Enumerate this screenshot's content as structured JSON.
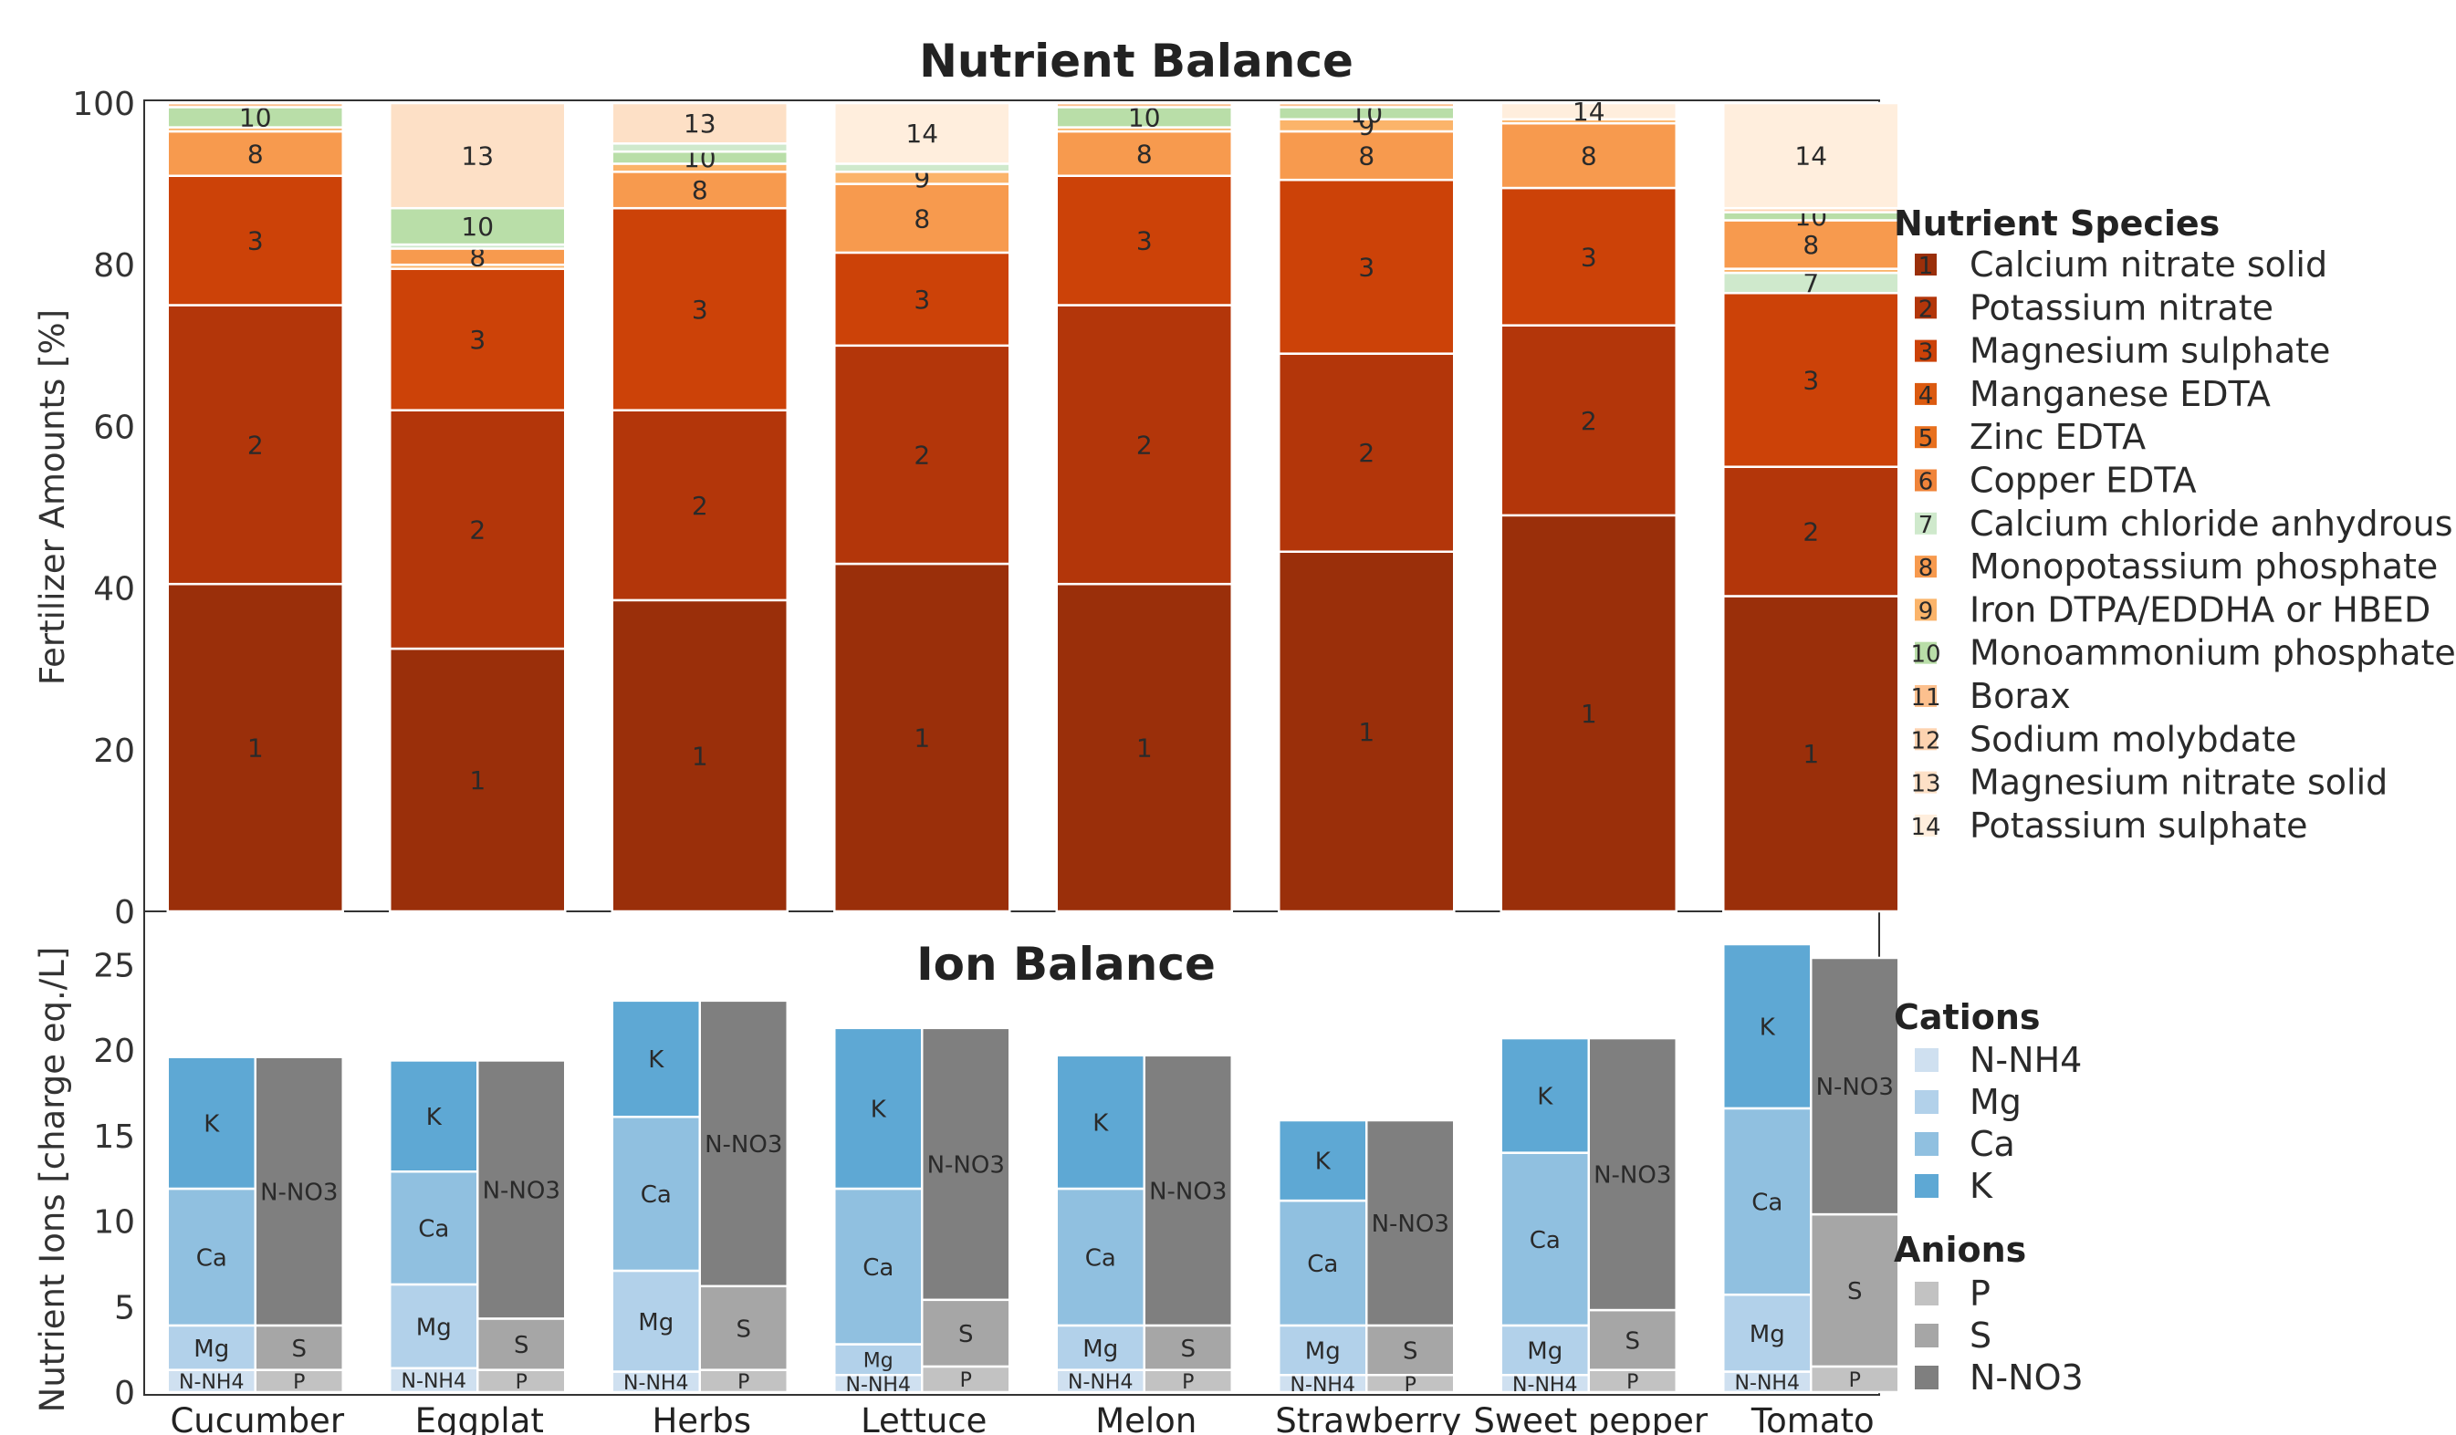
{
  "chart_data": [
    {
      "type": "bar",
      "stacked": true,
      "title": "Nutrient Balance",
      "ylabel": "Fertilizer  Amounts [%]",
      "ylim": [
        0,
        100
      ],
      "yticks": [
        "0",
        "20",
        "40",
        "60",
        "80",
        "100"
      ],
      "categories": [
        "Cucumber",
        "Eggplat",
        "Herbs",
        "Lettuce",
        "Melon",
        "Strawberry",
        "Sweet pepper",
        "Tomato"
      ],
      "legend_title": "Nutrient Species",
      "legend_position": "right",
      "species": [
        {
          "id": "1",
          "name": "Calcium nitrate solid",
          "color": "#9a2f0a"
        },
        {
          "id": "2",
          "name": "Potassium nitrate",
          "color": "#b3360a"
        },
        {
          "id": "3",
          "name": "Magnesium sulphate",
          "color": "#cc4208"
        },
        {
          "id": "4",
          "name": "Manganese EDTA",
          "color": "#db5a10"
        },
        {
          "id": "5",
          "name": "Zinc EDTA",
          "color": "#e8701e"
        },
        {
          "id": "6",
          "name": "Copper EDTA",
          "color": "#f0843a"
        },
        {
          "id": "7",
          "name": "Calcium chloride anhydrous",
          "color": "#cfe9cc"
        },
        {
          "id": "8",
          "name": "Monopotassium phosphate",
          "color": "#f79a4e"
        },
        {
          "id": "9",
          "name": "Iron DTPA/EDDHA or HBED",
          "color": "#fbb46a"
        },
        {
          "id": "10",
          "name": "Monoammonium phosphate",
          "color": "#b9dea8"
        },
        {
          "id": "11",
          "name": "Borax",
          "color": "#fcc08e"
        },
        {
          "id": "12",
          "name": "Sodium molybdate",
          "color": "#fdd3b0"
        },
        {
          "id": "13",
          "name": "Magnesium nitrate solid",
          "color": "#fde0c6"
        },
        {
          "id": "14",
          "name": "Potassium sulphate",
          "color": "#ffeedd"
        }
      ],
      "series": [
        {
          "category": "Cucumber",
          "segments": [
            {
              "id": "1",
              "value": 40.5,
              "label": "1"
            },
            {
              "id": "2",
              "value": 34.5,
              "label": "2"
            },
            {
              "id": "3",
              "value": 16.0,
              "label": "3"
            },
            {
              "id": "8",
              "value": 5.5,
              "label": "8"
            },
            {
              "id": "9",
              "value": 0.5,
              "label": ""
            },
            {
              "id": "10",
              "value": 2.5,
              "label": "10"
            },
            {
              "id": "11",
              "value": 0.5,
              "label": ""
            }
          ]
        },
        {
          "category": "Eggplat",
          "segments": [
            {
              "id": "1",
              "value": 32.5,
              "label": "1"
            },
            {
              "id": "2",
              "value": 29.5,
              "label": "2"
            },
            {
              "id": "3",
              "value": 17.5,
              "label": "3"
            },
            {
              "id": "9",
              "value": 0.5,
              "label": ""
            },
            {
              "id": "8",
              "value": 2.0,
              "label": "8"
            },
            {
              "id": "7",
              "value": 0.5,
              "label": ""
            },
            {
              "id": "10",
              "value": 4.5,
              "label": "10"
            },
            {
              "id": "13",
              "value": 13.0,
              "label": "13"
            }
          ]
        },
        {
          "category": "Herbs",
          "segments": [
            {
              "id": "1",
              "value": 38.5,
              "label": "1"
            },
            {
              "id": "2",
              "value": 23.5,
              "label": "2"
            },
            {
              "id": "3",
              "value": 25.0,
              "label": "3"
            },
            {
              "id": "8",
              "value": 4.5,
              "label": "8"
            },
            {
              "id": "9",
              "value": 1.0,
              "label": ""
            },
            {
              "id": "10",
              "value": 1.5,
              "label": "10"
            },
            {
              "id": "7",
              "value": 1.0,
              "label": ""
            },
            {
              "id": "13",
              "value": 5.0,
              "label": "13"
            }
          ]
        },
        {
          "category": "Lettuce",
          "segments": [
            {
              "id": "1",
              "value": 43.0,
              "label": "1"
            },
            {
              "id": "2",
              "value": 27.0,
              "label": "2"
            },
            {
              "id": "3",
              "value": 11.5,
              "label": "3"
            },
            {
              "id": "8",
              "value": 8.5,
              "label": "8"
            },
            {
              "id": "9",
              "value": 1.5,
              "label": "9"
            },
            {
              "id": "7",
              "value": 1.0,
              "label": ""
            },
            {
              "id": "14",
              "value": 7.5,
              "label": "14"
            }
          ]
        },
        {
          "category": "Melon",
          "segments": [
            {
              "id": "1",
              "value": 40.5,
              "label": "1"
            },
            {
              "id": "2",
              "value": 34.5,
              "label": "2"
            },
            {
              "id": "3",
              "value": 16.0,
              "label": "3"
            },
            {
              "id": "8",
              "value": 5.5,
              "label": "8"
            },
            {
              "id": "9",
              "value": 0.5,
              "label": ""
            },
            {
              "id": "10",
              "value": 2.5,
              "label": "10"
            },
            {
              "id": "11",
              "value": 0.5,
              "label": ""
            }
          ]
        },
        {
          "category": "Strawberry",
          "segments": [
            {
              "id": "1",
              "value": 44.5,
              "label": "1"
            },
            {
              "id": "2",
              "value": 24.5,
              "label": "2"
            },
            {
              "id": "3",
              "value": 21.5,
              "label": "3"
            },
            {
              "id": "8",
              "value": 6.0,
              "label": "8"
            },
            {
              "id": "9",
              "value": 1.5,
              "label": "9"
            },
            {
              "id": "10",
              "value": 1.5,
              "label": "10"
            },
            {
              "id": "11",
              "value": 0.5,
              "label": ""
            }
          ]
        },
        {
          "category": "Sweet pepper",
          "segments": [
            {
              "id": "1",
              "value": 49.0,
              "label": "1"
            },
            {
              "id": "2",
              "value": 23.5,
              "label": "2"
            },
            {
              "id": "3",
              "value": 17.0,
              "label": "3"
            },
            {
              "id": "8",
              "value": 8.0,
              "label": "8"
            },
            {
              "id": "9",
              "value": 0.5,
              "label": ""
            },
            {
              "id": "14",
              "value": 2.0,
              "label": "14"
            }
          ]
        },
        {
          "category": "Tomato",
          "segments": [
            {
              "id": "1",
              "value": 39.0,
              "label": "1"
            },
            {
              "id": "2",
              "value": 16.0,
              "label": "2"
            },
            {
              "id": "3",
              "value": 21.5,
              "label": "3"
            },
            {
              "id": "7",
              "value": 2.5,
              "label": "7"
            },
            {
              "id": "9",
              "value": 0.5,
              "label": ""
            },
            {
              "id": "8",
              "value": 6.0,
              "label": "8"
            },
            {
              "id": "10",
              "value": 1.0,
              "label": "10"
            },
            {
              "id": "12",
              "value": 0.5,
              "label": ""
            },
            {
              "id": "14",
              "value": 13.0,
              "label": "14"
            }
          ]
        }
      ]
    },
    {
      "type": "bar",
      "stacked": true,
      "title": "Ion Balance",
      "ylabel": "Nutrient Ions [charge eq./L]",
      "ylim": [
        0,
        27
      ],
      "yticks": [
        "0",
        "5",
        "10",
        "15",
        "20",
        "25"
      ],
      "categories": [
        "Cucumber",
        "Eggplat",
        "Herbs",
        "Lettuce",
        "Melon",
        "Strawberry",
        "Sweet pepper",
        "Tomato"
      ],
      "legend_position": "right",
      "cation_title": "Cations",
      "anion_title": "Anions",
      "cations": [
        {
          "name": "N-NH4",
          "color": "#cfe0f0"
        },
        {
          "name": "Mg",
          "color": "#b2d1ea"
        },
        {
          "name": "Ca",
          "color": "#90c0e0"
        },
        {
          "name": "K",
          "color": "#5ea8d4"
        }
      ],
      "anions": [
        {
          "name": "P",
          "color": "#c2c2c2"
        },
        {
          "name": "S",
          "color": "#a6a6a6"
        },
        {
          "name": "N-NO3",
          "color": "#7f7f7f"
        }
      ],
      "cation_series": [
        {
          "category": "Cucumber",
          "values": [
            1.3,
            2.6,
            8.0,
            7.7
          ]
        },
        {
          "category": "Eggplat",
          "values": [
            1.4,
            4.9,
            6.6,
            6.5
          ]
        },
        {
          "category": "Herbs",
          "values": [
            1.2,
            5.9,
            9.0,
            6.8
          ]
        },
        {
          "category": "Lettuce",
          "values": [
            1.0,
            1.8,
            9.1,
            9.4
          ]
        },
        {
          "category": "Melon",
          "values": [
            1.3,
            2.6,
            8.0,
            7.8
          ]
        },
        {
          "category": "Strawberry",
          "values": [
            1.0,
            2.9,
            7.3,
            4.7
          ]
        },
        {
          "category": "Sweet pepper",
          "values": [
            1.0,
            2.9,
            10.1,
            6.7
          ]
        },
        {
          "category": "Tomato",
          "values": [
            1.2,
            4.5,
            10.9,
            9.6
          ]
        }
      ],
      "anion_series": [
        {
          "category": "Cucumber",
          "values": [
            1.3,
            2.6,
            15.7
          ]
        },
        {
          "category": "Eggplat",
          "values": [
            1.3,
            3.0,
            15.1
          ]
        },
        {
          "category": "Herbs",
          "values": [
            1.3,
            4.9,
            16.7
          ]
        },
        {
          "category": "Lettuce",
          "values": [
            1.5,
            3.9,
            15.9
          ]
        },
        {
          "category": "Melon",
          "values": [
            1.3,
            2.6,
            15.8
          ]
        },
        {
          "category": "Strawberry",
          "values": [
            1.0,
            2.9,
            12.0
          ]
        },
        {
          "category": "Sweet pepper",
          "values": [
            1.3,
            3.5,
            15.9
          ]
        },
        {
          "category": "Tomato",
          "values": [
            1.5,
            8.9,
            15.0
          ]
        }
      ]
    }
  ]
}
